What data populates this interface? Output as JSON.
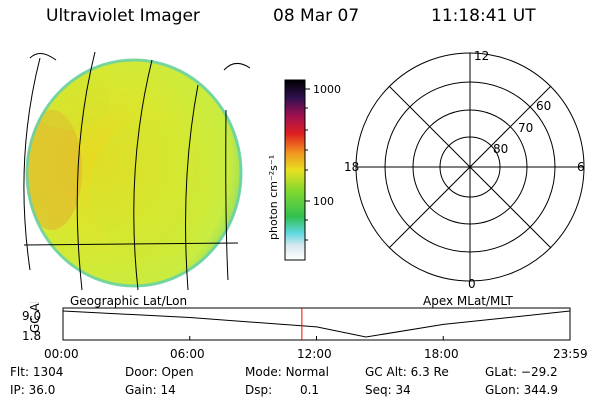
{
  "header": {
    "title": "Ultraviolet Imager",
    "date": "08 Mar 07",
    "time": "11:18:41 UT"
  },
  "colorbar": {
    "unit_label": "photon cm⁻²s⁻¹",
    "ticks": [
      "1000",
      "100"
    ],
    "scale": "log"
  },
  "polar_plot": {
    "mlt_labels": [
      "12",
      "18",
      "6",
      "0"
    ],
    "mlat_labels": [
      "60",
      "70",
      "80"
    ]
  },
  "panels": {
    "left_caption": "Geographic Lat/Lon",
    "right_caption": "Apex MLat/MLT"
  },
  "altitude_plot": {
    "y_title": "GC Alt",
    "y_ticks": [
      "9.0",
      "1.8"
    ],
    "x_ticks": [
      "00:00",
      "06:00",
      "12:00",
      "18:00",
      "23:59"
    ],
    "current_time_marker": "11:18",
    "marker_color": "#ff0000"
  },
  "chart_data": {
    "type": "line",
    "x": [
      "00:00",
      "06:00",
      "12:00",
      "14:20",
      "18:00",
      "23:59"
    ],
    "y": [
      9.0,
      7.2,
      4.6,
      1.8,
      5.3,
      9.0
    ],
    "ylabel": "GC Alt",
    "yticks": [
      9.0,
      1.8
    ],
    "xticks": [
      "00:00",
      "06:00",
      "12:00",
      "18:00",
      "23:59"
    ]
  },
  "info": {
    "flt": {
      "label": "Flt:",
      "value": "1304"
    },
    "ip": {
      "label": "IP:",
      "value": "36.0"
    },
    "door": {
      "label": "Door:",
      "value": "Open"
    },
    "gain": {
      "label": "Gain:",
      "value": "14"
    },
    "mode": {
      "label": "Mode:",
      "value": "Normal"
    },
    "dsp": {
      "label": "Dsp:",
      "value": "0.1"
    },
    "gcalt": {
      "label": "GC Alt:",
      "value": "6.3 Re"
    },
    "seq": {
      "label": "Seq:",
      "value": "34"
    },
    "glat": {
      "label": "GLat:",
      "value": "−29.2"
    },
    "glon": {
      "label": "GLon:",
      "value": "344.9"
    }
  }
}
